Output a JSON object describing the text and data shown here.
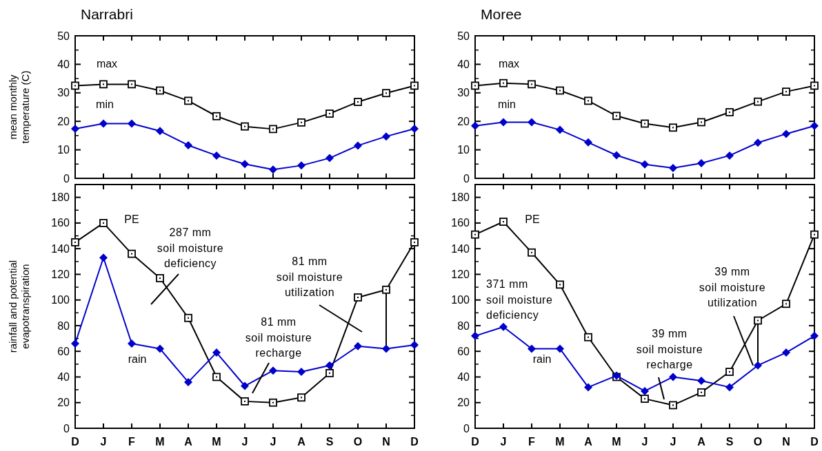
{
  "chart_data": [
    {
      "type": "line",
      "title": "Narrabri",
      "ylabel": "mean monthly\ntemperature (C)",
      "categories": [
        null,
        null,
        null,
        null,
        null,
        null,
        null,
        null,
        null,
        null,
        null,
        null,
        null
      ],
      "ylim": [
        0,
        50
      ],
      "yticks": [
        0,
        10,
        20,
        30,
        40,
        50
      ],
      "series": [
        {
          "name": "max",
          "color": "#000000",
          "marker": "square",
          "values": [
            32.5,
            33,
            33,
            30.8,
            27.2,
            21.8,
            18.2,
            17.3,
            19.6,
            22.7,
            26.8,
            29.9,
            32.5
          ]
        },
        {
          "name": "min",
          "color": "#0000cc",
          "marker": "diamond",
          "values": [
            17.4,
            19.2,
            19.2,
            16.6,
            11.6,
            8.0,
            5.0,
            3.1,
            4.5,
            7.1,
            11.5,
            14.7,
            17.4
          ]
        }
      ]
    },
    {
      "type": "line",
      "title": "Moree",
      "categories": [
        null,
        null,
        null,
        null,
        null,
        null,
        null,
        null,
        null,
        null,
        null,
        null,
        null
      ],
      "ylim": [
        0,
        50
      ],
      "yticks": [
        0,
        10,
        20,
        30,
        40,
        50
      ],
      "series": [
        {
          "name": "max",
          "color": "#000000",
          "marker": "square",
          "values": [
            32.5,
            33.4,
            33.0,
            30.8,
            27.2,
            21.9,
            19.2,
            17.8,
            19.7,
            23.2,
            26.9,
            30.4,
            32.5
          ]
        },
        {
          "name": "min",
          "color": "#0000cc",
          "marker": "diamond",
          "values": [
            18.4,
            19.7,
            19.7,
            17.0,
            12.6,
            8.1,
            4.9,
            3.6,
            5.3,
            8.0,
            12.5,
            15.6,
            18.4
          ]
        }
      ]
    },
    {
      "type": "line",
      "ylabel": "rainfall and potential\nevapotranspiration",
      "categories": [
        "D",
        "J",
        "F",
        "M",
        "A",
        "M",
        "J",
        "J",
        "A",
        "S",
        "O",
        "N",
        "D"
      ],
      "ylim": [
        0,
        190
      ],
      "yticks": [
        0,
        20,
        40,
        60,
        80,
        100,
        120,
        140,
        160,
        180
      ],
      "annotations": [
        "287 mm\nsoil moisture\ndeficiency",
        "81 mm\nsoil moisture\nrecharge",
        "81 mm\nsoil moisture\nutilization"
      ],
      "series": [
        {
          "name": "PE",
          "color": "#000000",
          "marker": "square",
          "values": [
            145,
            160,
            136,
            117,
            86,
            40,
            21,
            20,
            24,
            43,
            102,
            108,
            145
          ]
        },
        {
          "name": "rain",
          "color": "#0000cc",
          "marker": "diamond",
          "values": [
            66,
            133,
            66,
            62,
            36,
            59,
            33,
            45,
            44,
            49,
            64,
            62,
            65
          ]
        }
      ]
    },
    {
      "type": "line",
      "categories": [
        "D",
        "J",
        "F",
        "M",
        "A",
        "M",
        "J",
        "J",
        "A",
        "S",
        "O",
        "N",
        "D"
      ],
      "ylim": [
        0,
        190
      ],
      "yticks": [
        0,
        20,
        40,
        60,
        80,
        100,
        120,
        140,
        160,
        180
      ],
      "annotations": [
        "371 mm\nsoil moisture\ndeficiency",
        "39 mm\nsoil moisture\nrecharge",
        {
          "text": "39 mm\nsoil moisture\nutilization",
          "x": "O",
          "y": 49
        }
      ],
      "series": [
        {
          "name": "PE",
          "color": "#000000",
          "marker": "square",
          "values": [
            151,
            161,
            137,
            112,
            71,
            40,
            23,
            18,
            28,
            44,
            84,
            97,
            151
          ]
        },
        {
          "name": "rain",
          "color": "#0000cc",
          "marker": "diamond",
          "values": [
            72,
            79,
            62,
            62,
            32,
            41,
            29,
            40,
            37,
            32,
            49,
            59,
            72
          ]
        }
      ]
    }
  ]
}
